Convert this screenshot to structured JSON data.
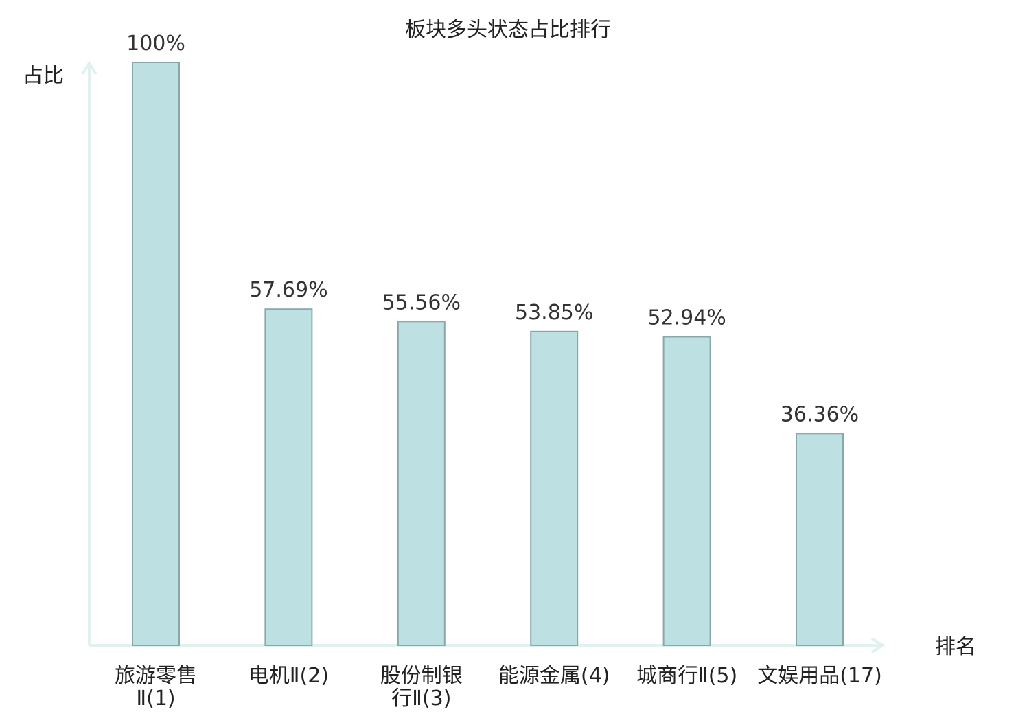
{
  "chart_data": {
    "type": "bar",
    "title": "板块多头状态占比排行",
    "xlabel": "排名",
    "ylabel": "占比",
    "ylim": [
      0,
      100
    ],
    "grid": false,
    "categories": [
      {
        "lines": [
          "旅游零售",
          "Ⅱ(1)"
        ],
        "highlight": false
      },
      {
        "lines": [
          "电机Ⅱ(2)"
        ],
        "highlight": false
      },
      {
        "lines": [
          "股份制银",
          "行Ⅱ(3)"
        ],
        "highlight": false
      },
      {
        "lines": [
          "能源金属(4)"
        ],
        "highlight": false
      },
      {
        "lines": [
          "城商行Ⅱ(5)"
        ],
        "highlight": false
      },
      {
        "lines": [
          "文娱用品(17)"
        ],
        "highlight": true
      }
    ],
    "values": [
      100,
      57.69,
      55.56,
      53.85,
      52.94,
      36.36
    ],
    "value_labels": [
      "100%",
      "57.69%",
      "55.56%",
      "53.85%",
      "52.94%",
      "36.36%"
    ]
  },
  "colors": {
    "bar_fill": "#bde0e3",
    "bar_stroke": "#8aa7ab",
    "axis": "#e0f1ef",
    "text": "#222222",
    "value_text": "#333333",
    "highlight": "#e8141e"
  }
}
